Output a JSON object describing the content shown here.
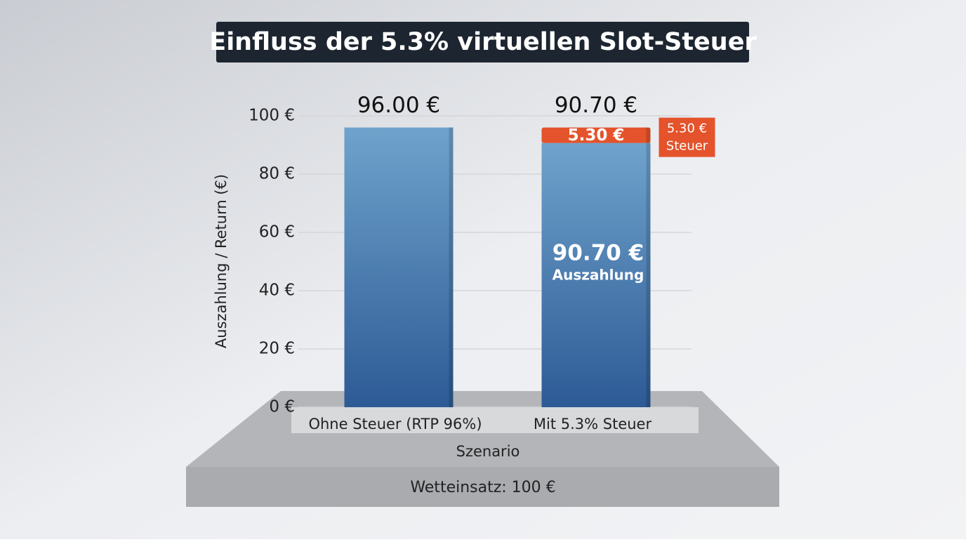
{
  "chart_data": {
    "type": "bar",
    "stacked": true,
    "title": "Einfluss der 5.3% virtuellen Slot-Steuer",
    "categories": [
      "Ohne Steuer (RTP 96%)",
      "Mit 5.3% Steuer"
    ],
    "series": [
      {
        "name": "Auszahlung",
        "color": "#3f74ad",
        "values": [
          96,
          90.7
        ],
        "value_labels": [
          "96.00 €",
          "90.70 €"
        ]
      },
      {
        "name": "Steuer",
        "color": "#e4532b",
        "values": [
          null,
          5.3
        ],
        "value_labels": [
          null,
          "5.30 €"
        ]
      }
    ],
    "ylim": [
      0,
      100
    ],
    "yticks": [
      {
        "value": 0,
        "label": "0 €"
      },
      {
        "value": 20,
        "label": "20 €"
      },
      {
        "value": 40,
        "label": "40 €"
      },
      {
        "value": 60,
        "label": "60 €"
      },
      {
        "value": 80,
        "label": "80 €"
      },
      {
        "value": 100,
        "label": "100 €"
      }
    ],
    "ylabel": "Auszahlung / Return (€)",
    "xlabel": "Szenario",
    "annotation": "Wetteinsatz: 100 €",
    "grid": true
  }
}
